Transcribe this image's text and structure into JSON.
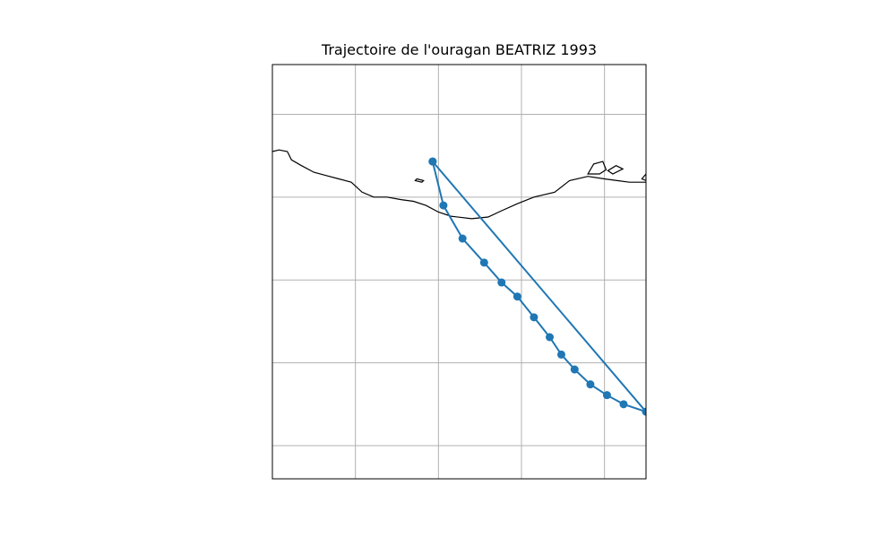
{
  "title": "Trajectoire de l'ouragan BEATRIZ 1993",
  "colors": {
    "track": "#1f77b4",
    "coastline": "#000000",
    "grid": "#b0b0b0",
    "frame": "#000000"
  },
  "map": {
    "lon_range": [
      -103.0,
      -98.5
    ],
    "lat_range": [
      11.6,
      16.6
    ],
    "gridlines": {
      "lon": [
        -102,
        -101,
        -100,
        -99
      ],
      "lat": [
        12,
        13,
        14,
        15,
        16
      ]
    },
    "coastline": [
      [
        -103.0,
        15.55
      ],
      [
        -102.92,
        15.57
      ],
      [
        -102.82,
        15.55
      ],
      [
        -102.77,
        15.45
      ],
      [
        -102.65,
        15.38
      ],
      [
        -102.5,
        15.3
      ],
      [
        -102.35,
        15.26
      ],
      [
        -102.2,
        15.22
      ],
      [
        -102.05,
        15.18
      ],
      [
        -101.92,
        15.06
      ],
      [
        -101.78,
        15.0
      ],
      [
        -101.62,
        15.0
      ],
      [
        -101.45,
        14.97
      ],
      [
        -101.3,
        14.95
      ],
      [
        -101.15,
        14.9
      ],
      [
        -101.0,
        14.82
      ],
      [
        -100.85,
        14.77
      ],
      [
        -100.6,
        14.74
      ],
      [
        -100.4,
        14.76
      ],
      [
        -100.25,
        14.83
      ],
      [
        -100.05,
        14.92
      ],
      [
        -99.85,
        15.0
      ],
      [
        -99.6,
        15.06
      ],
      [
        -99.42,
        15.2
      ],
      [
        -99.2,
        15.25
      ],
      [
        -99.0,
        15.22
      ],
      [
        -98.85,
        15.2
      ],
      [
        -98.7,
        15.18
      ],
      [
        -98.5,
        15.18
      ]
    ],
    "islands": [
      [
        [
          -101.26,
          15.22
        ],
        [
          -101.18,
          15.2
        ],
        [
          -101.2,
          15.18
        ],
        [
          -101.28,
          15.2
        ]
      ],
      [
        [
          -99.2,
          15.28
        ],
        [
          -99.13,
          15.4
        ],
        [
          -99.02,
          15.43
        ],
        [
          -98.98,
          15.33
        ],
        [
          -99.06,
          15.28
        ]
      ],
      [
        [
          -98.96,
          15.32
        ],
        [
          -98.86,
          15.38
        ],
        [
          -98.78,
          15.34
        ],
        [
          -98.9,
          15.28
        ]
      ],
      [
        [
          -98.5,
          15.28
        ],
        [
          -98.55,
          15.22
        ],
        [
          -98.5,
          15.2
        ]
      ]
    ]
  },
  "track": {
    "points": [
      [
        -101.07,
        15.43
      ],
      [
        -100.94,
        14.9
      ],
      [
        -100.71,
        14.5
      ],
      [
        -100.45,
        14.21
      ],
      [
        -100.24,
        13.97
      ],
      [
        -100.05,
        13.8
      ],
      [
        -99.85,
        13.55
      ],
      [
        -99.66,
        13.31
      ],
      [
        -99.52,
        13.1
      ],
      [
        -99.36,
        12.92
      ],
      [
        -99.17,
        12.74
      ],
      [
        -98.97,
        12.61
      ],
      [
        -98.77,
        12.5
      ],
      [
        -98.5,
        12.41
      ],
      [
        -101.07,
        15.43
      ]
    ]
  }
}
